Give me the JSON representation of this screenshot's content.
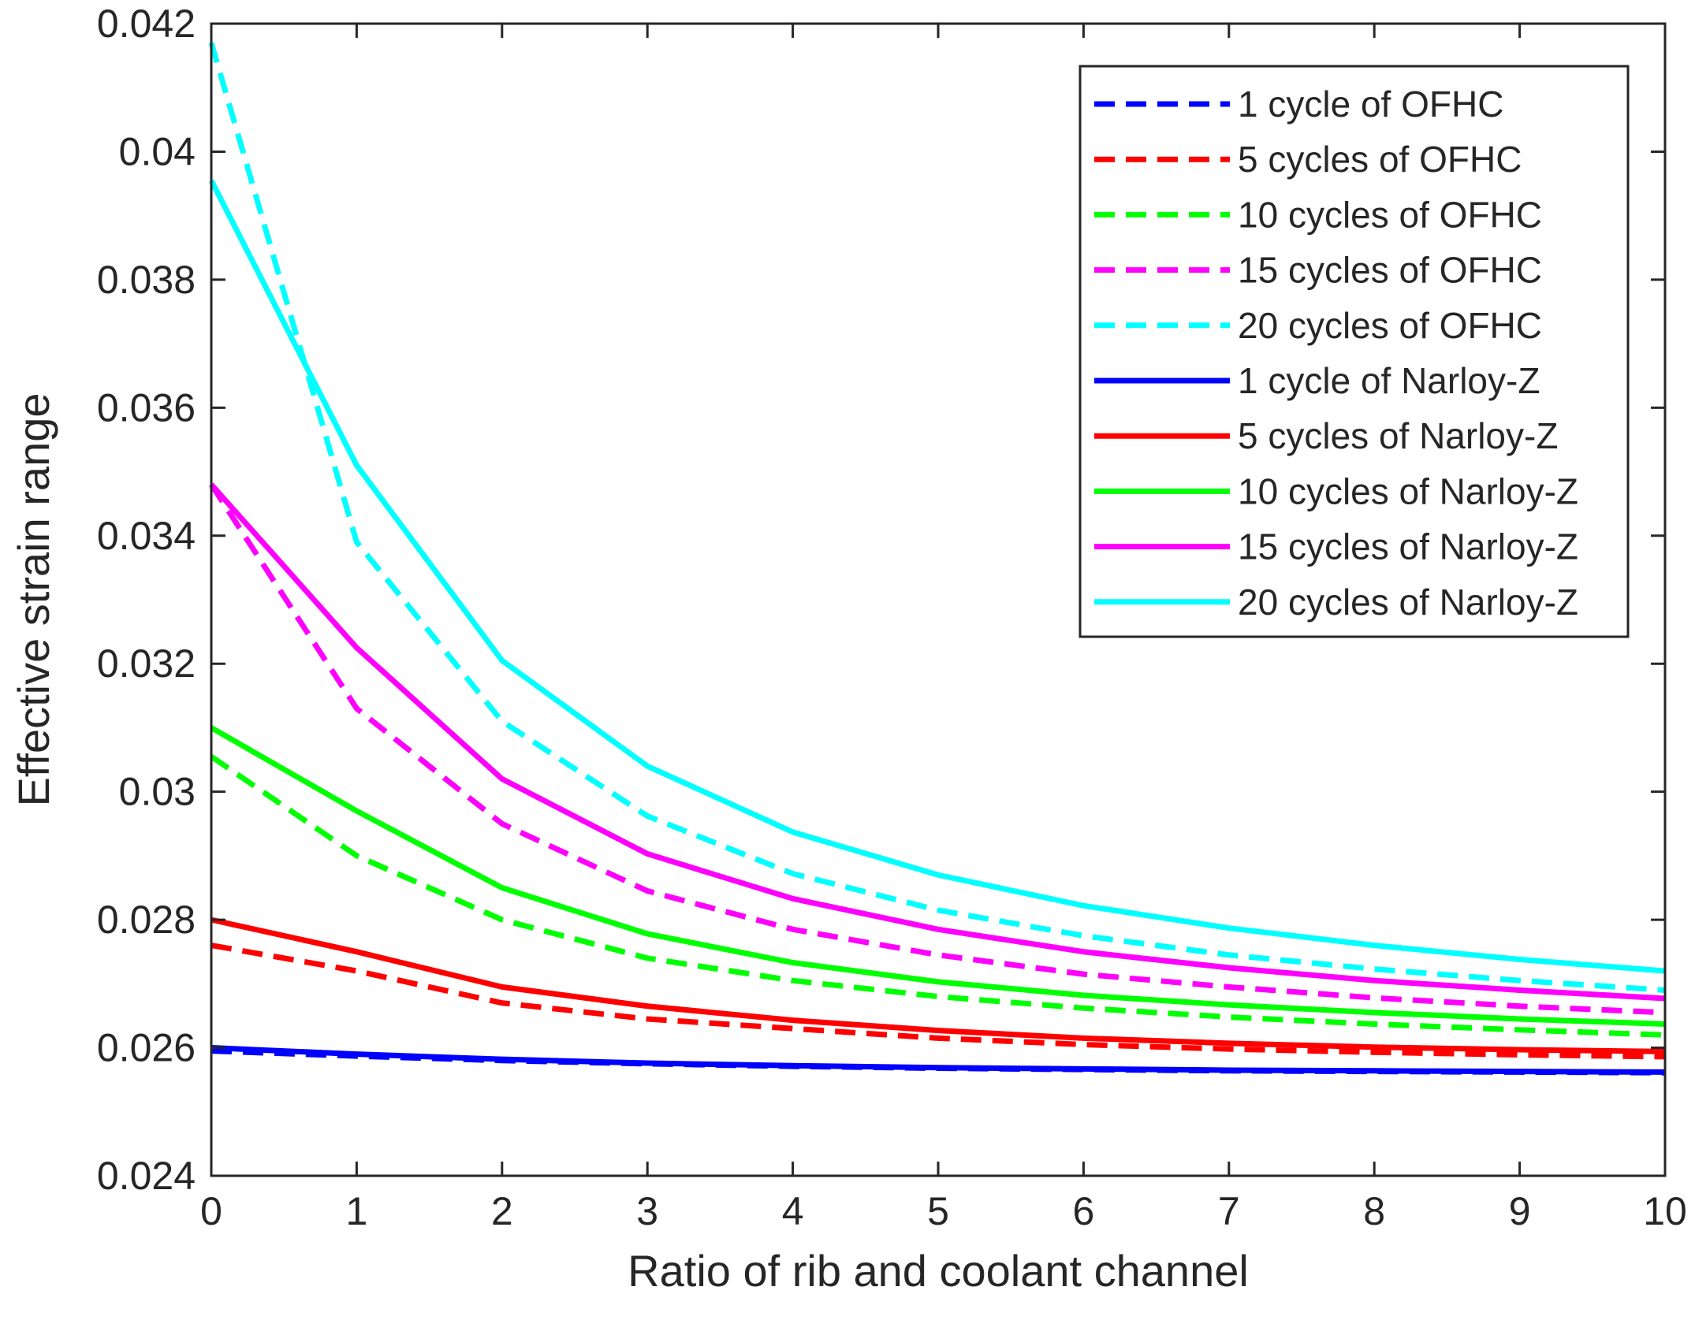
{
  "chart_data": {
    "type": "line",
    "title": "",
    "xlabel": "Ratio of rib and coolant channel",
    "ylabel": "Effective strain range",
    "xlim": [
      0,
      10
    ],
    "ylim": [
      0.024,
      0.042
    ],
    "xticks": [
      "0",
      "1",
      "2",
      "3",
      "4",
      "5",
      "6",
      "7",
      "8",
      "9",
      "10"
    ],
    "yticks": [
      "0.024",
      "0.026",
      "0.028",
      "0.03",
      "0.032",
      "0.034",
      "0.036",
      "0.038",
      "0.04",
      "0.042"
    ],
    "legend_position": "top-right",
    "x": [
      0,
      1,
      2,
      3,
      4,
      5,
      6,
      7,
      8,
      9,
      10
    ],
    "series": [
      {
        "name": "1 cycle of OFHC",
        "color": "#0000ff",
        "style": "dashed",
        "values": [
          0.02595,
          0.02587,
          0.0258,
          0.02575,
          0.02571,
          0.02568,
          0.02566,
          0.02564,
          0.02563,
          0.02562,
          0.02561
        ]
      },
      {
        "name": "5 cycles of OFHC",
        "color": "#ff0000",
        "style": "dashed",
        "values": [
          0.0276,
          0.0272,
          0.0267,
          0.02645,
          0.0263,
          0.02615,
          0.02605,
          0.02598,
          0.02593,
          0.02589,
          0.02586
        ]
      },
      {
        "name": "10 cycles of OFHC",
        "color": "#00ff00",
        "style": "dashed",
        "values": [
          0.03055,
          0.029,
          0.028,
          0.0274,
          0.02705,
          0.0268,
          0.02662,
          0.02648,
          0.02637,
          0.02628,
          0.0262
        ]
      },
      {
        "name": "15 cycles of OFHC",
        "color": "#ff00ff",
        "style": "dashed",
        "values": [
          0.0348,
          0.0313,
          0.0295,
          0.02845,
          0.02785,
          0.02745,
          0.02715,
          0.02695,
          0.02678,
          0.02665,
          0.02655
        ]
      },
      {
        "name": "20 cycles of OFHC",
        "color": "#00ffff",
        "style": "dashed",
        "values": [
          0.0417,
          0.0339,
          0.0311,
          0.02962,
          0.02872,
          0.02815,
          0.02775,
          0.02745,
          0.02723,
          0.02705,
          0.0269
        ]
      },
      {
        "name": "1 cycle of Narloy-Z",
        "color": "#0000ff",
        "style": "solid",
        "values": [
          0.026,
          0.0259,
          0.02582,
          0.02576,
          0.02572,
          0.02569,
          0.02567,
          0.02565,
          0.02564,
          0.02563,
          0.02562
        ]
      },
      {
        "name": "5 cycles of Narloy-Z",
        "color": "#ff0000",
        "style": "solid",
        "values": [
          0.028,
          0.0275,
          0.02695,
          0.02665,
          0.02643,
          0.02627,
          0.02615,
          0.02607,
          0.02601,
          0.02597,
          0.02594
        ]
      },
      {
        "name": "10 cycles of Narloy-Z",
        "color": "#00ff00",
        "style": "solid",
        "values": [
          0.031,
          0.0297,
          0.0285,
          0.02778,
          0.02733,
          0.02703,
          0.02682,
          0.02667,
          0.02655,
          0.02645,
          0.02637
        ]
      },
      {
        "name": "15 cycles of Narloy-Z",
        "color": "#ff00ff",
        "style": "solid",
        "values": [
          0.0348,
          0.03225,
          0.0302,
          0.02903,
          0.02833,
          0.02785,
          0.0275,
          0.02725,
          0.02705,
          0.0269,
          0.02677
        ]
      },
      {
        "name": "20 cycles of Narloy-Z",
        "color": "#00ffff",
        "style": "solid",
        "values": [
          0.03955,
          0.0351,
          0.03205,
          0.0304,
          0.02937,
          0.0287,
          0.02822,
          0.02787,
          0.0276,
          0.02738,
          0.0272
        ]
      }
    ]
  }
}
